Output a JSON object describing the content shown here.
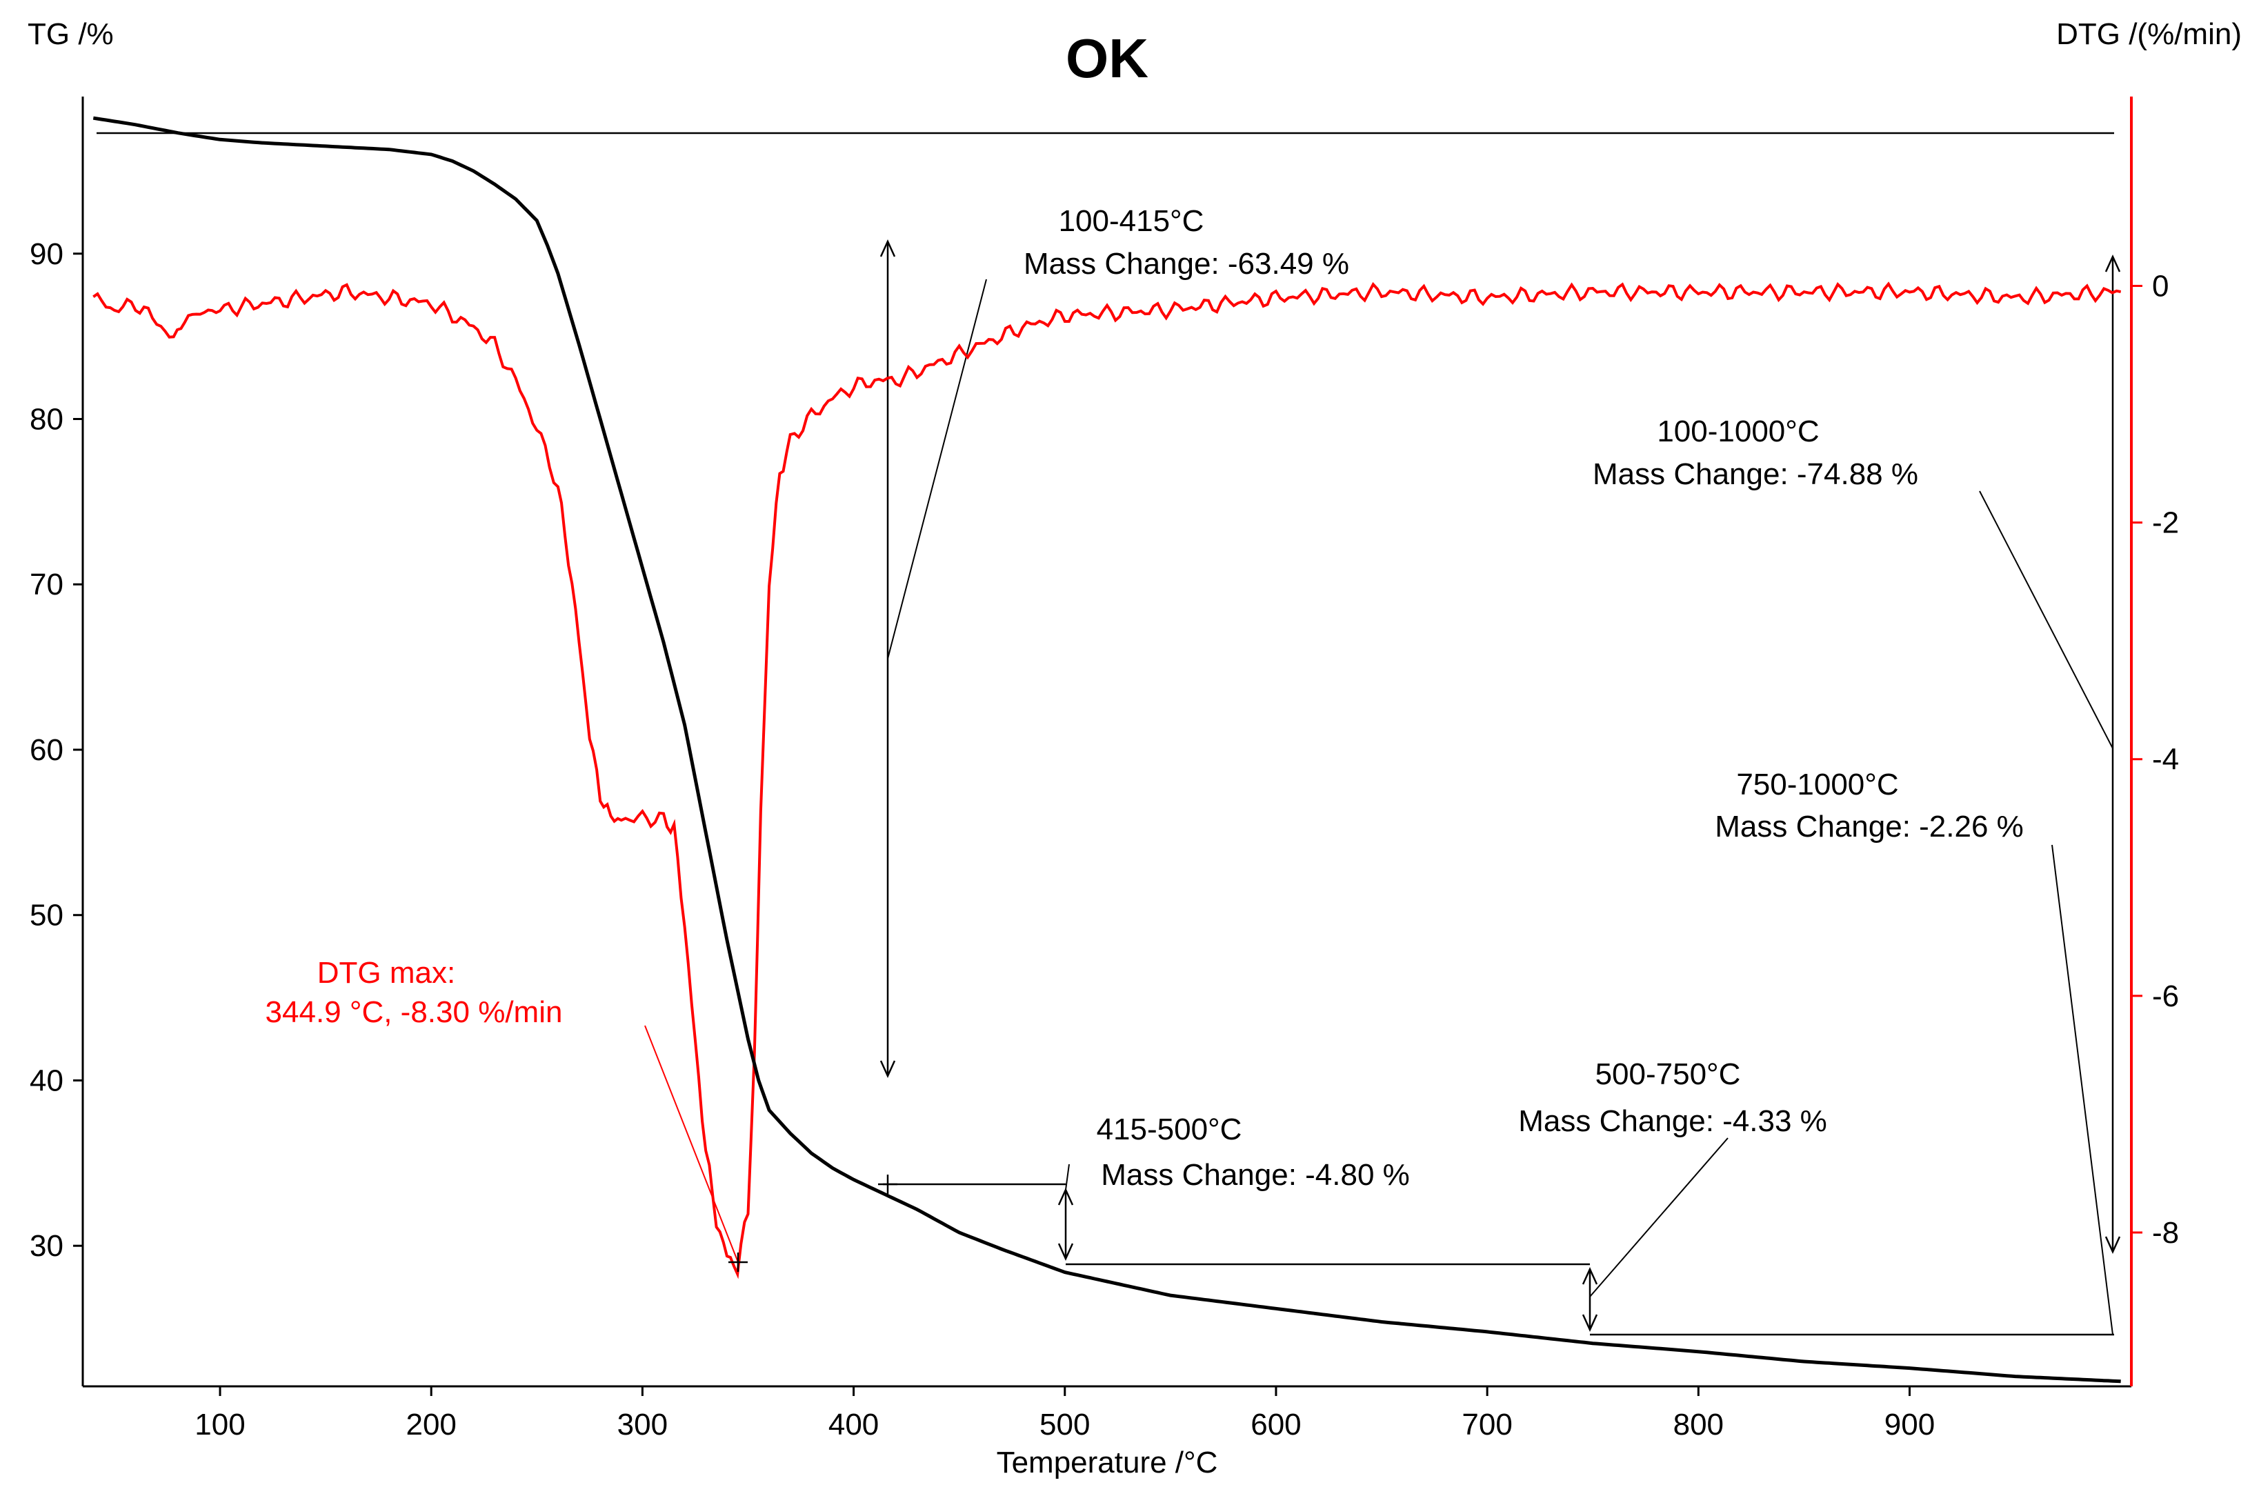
{
  "chart_data": {
    "type": "line",
    "title": "OK",
    "xlabel": "Temperature /°C",
    "ylabel_left": "TG /%",
    "ylabel_right": "DTG /(%/min)",
    "xlim": [
      35,
      1005
    ],
    "ylim_left": [
      21.5,
      99.5
    ],
    "ylim_right": [
      -9.3,
      1.6
    ],
    "x_ticks": [
      100,
      200,
      300,
      400,
      500,
      600,
      700,
      800,
      900
    ],
    "y_left_ticks": [
      30,
      40,
      50,
      60,
      70,
      80,
      90
    ],
    "y_right_ticks": [
      0,
      -2,
      -4,
      -6,
      -8
    ],
    "colors": {
      "tg": "#000000",
      "dtg": "#ff0000"
    },
    "series": [
      {
        "name": "TG",
        "axis": "left",
        "x": [
          40,
          60,
          80,
          100,
          120,
          150,
          180,
          200,
          210,
          220,
          230,
          240,
          250,
          255,
          260,
          270,
          280,
          290,
          300,
          310,
          320,
          330,
          340,
          345,
          350,
          355,
          360,
          370,
          380,
          390,
          400,
          415,
          430,
          450,
          470,
          500,
          550,
          600,
          650,
          700,
          750,
          800,
          850,
          900,
          950,
          1000
        ],
        "values": [
          98.2,
          97.8,
          97.3,
          96.9,
          96.7,
          96.5,
          96.3,
          96.0,
          95.6,
          95.0,
          94.2,
          93.3,
          92.0,
          90.5,
          88.8,
          84.5,
          80.0,
          75.5,
          71.0,
          66.5,
          61.5,
          55.0,
          48.5,
          45.5,
          42.5,
          40.0,
          38.2,
          36.8,
          35.6,
          34.7,
          34.0,
          33.1,
          32.2,
          30.8,
          29.8,
          28.4,
          27.0,
          26.2,
          25.4,
          24.8,
          24.1,
          23.6,
          23.0,
          22.6,
          22.1,
          21.8
        ]
      },
      {
        "name": "DTG",
        "axis": "right",
        "x": [
          40,
          50,
          60,
          70,
          78,
          85,
          100,
          120,
          140,
          160,
          180,
          200,
          210,
          220,
          230,
          240,
          250,
          260,
          265,
          270,
          275,
          280,
          285,
          290,
          300,
          310,
          315,
          320,
          325,
          330,
          335,
          340,
          345,
          350,
          353,
          356,
          360,
          365,
          370,
          380,
          390,
          400,
          410,
          420,
          440,
          460,
          480,
          500,
          550,
          600,
          650,
          700,
          750,
          800,
          850,
          900,
          950,
          1000
        ],
        "values": [
          -0.1,
          -0.2,
          -0.15,
          -0.3,
          -0.45,
          -0.25,
          -0.2,
          -0.15,
          -0.1,
          -0.05,
          -0.1,
          -0.15,
          -0.25,
          -0.35,
          -0.5,
          -0.8,
          -1.2,
          -1.7,
          -2.3,
          -3.0,
          -3.8,
          -4.3,
          -4.5,
          -4.5,
          -4.5,
          -4.5,
          -4.6,
          -5.4,
          -6.4,
          -7.3,
          -7.9,
          -8.2,
          -8.3,
          -7.8,
          -6.5,
          -4.5,
          -2.5,
          -1.6,
          -1.3,
          -1.1,
          -0.95,
          -0.85,
          -0.8,
          -0.8,
          -0.65,
          -0.5,
          -0.35,
          -0.25,
          -0.2,
          -0.1,
          -0.05,
          -0.1,
          -0.05,
          -0.05,
          -0.05,
          -0.05,
          -0.1,
          -0.05
        ]
      }
    ],
    "annotations": {
      "dtg_max": {
        "label_1": "DTG max:",
        "label_2": "344.9 °C, -8.30 %/min",
        "x": 344.9,
        "y_right": -8.3
      },
      "step_100_415": {
        "range": "100-415°C",
        "mass_change": "Mass Change: -63.49 %"
      },
      "step_100_1000": {
        "range": "100-1000°C",
        "mass_change": "Mass Change: -74.88 %"
      },
      "step_750_1000": {
        "range": "750-1000°C",
        "mass_change": "Mass Change: -2.26 %"
      },
      "step_500_750": {
        "range": "500-750°C",
        "mass_change": "Mass Change: -4.33 %"
      },
      "step_415_500": {
        "range": "415-500°C",
        "mass_change": "Mass Change: -4.80 %"
      }
    }
  }
}
